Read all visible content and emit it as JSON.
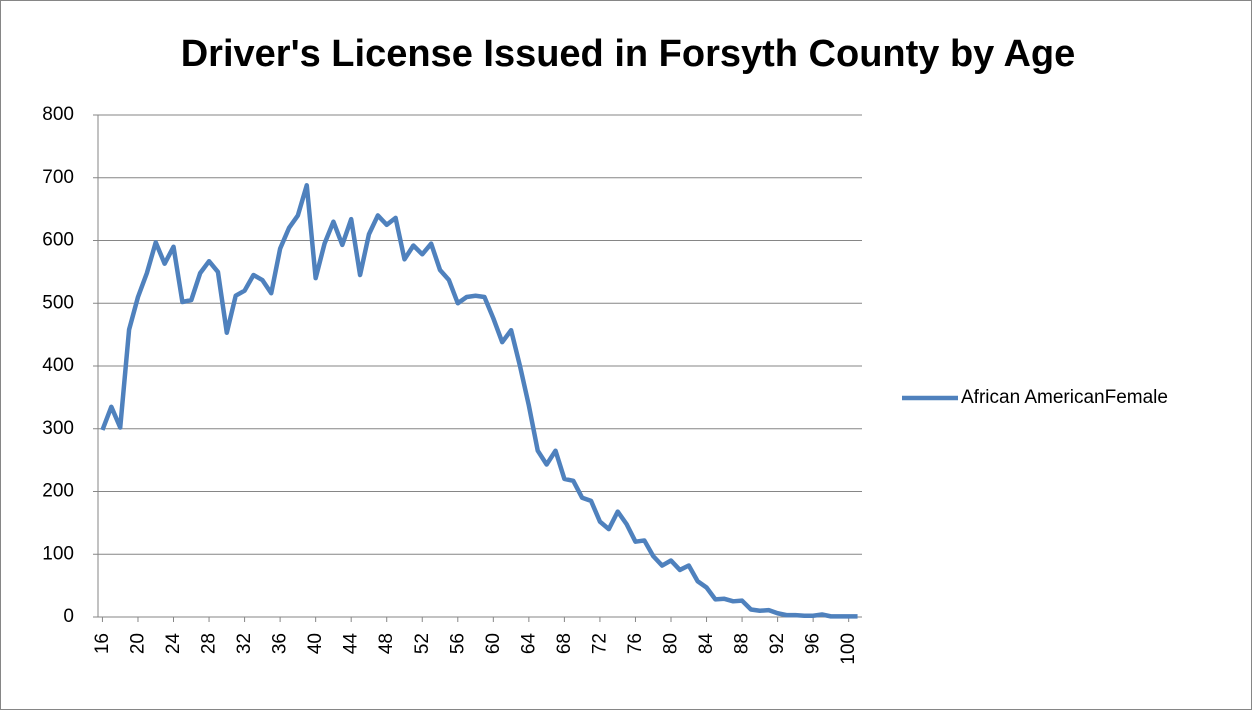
{
  "chart_data": {
    "type": "line",
    "title": "Driver's License Issued in Forsyth County by Age",
    "categories": [
      16,
      null,
      null,
      null,
      20,
      null,
      null,
      null,
      24,
      null,
      null,
      null,
      28,
      null,
      null,
      null,
      32,
      null,
      null,
      null,
      36,
      null,
      null,
      null,
      40,
      null,
      null,
      null,
      44,
      null,
      null,
      null,
      48,
      null,
      null,
      null,
      52,
      null,
      null,
      null,
      56,
      null,
      null,
      null,
      60,
      null,
      null,
      null,
      64,
      null,
      null,
      null,
      68,
      null,
      null,
      null,
      72,
      null,
      null,
      null,
      76,
      null,
      null,
      null,
      80,
      null,
      null,
      null,
      84,
      null,
      null,
      null,
      88,
      null,
      null,
      null,
      92,
      null,
      null,
      null,
      96,
      null,
      null,
      null,
      100,
      null
    ],
    "series": [
      {
        "name": "African AmericanFemale",
        "color": "#4f81bd",
        "values": [
          298,
          335,
          302,
          458,
          510,
          548,
          597,
          563,
          590,
          502,
          505,
          548,
          567,
          550,
          453,
          512,
          520,
          545,
          537,
          516,
          587,
          620,
          640,
          688,
          540,
          595,
          630,
          593,
          634,
          545,
          610,
          640,
          625,
          636,
          570,
          592,
          578,
          595,
          553,
          537,
          500,
          510,
          512,
          510,
          476,
          438,
          457,
          400,
          337,
          265,
          243,
          265,
          220,
          217,
          190,
          185,
          152,
          140,
          168,
          148,
          120,
          122,
          97,
          82,
          90,
          75,
          82,
          57,
          47,
          28,
          29,
          25,
          26,
          12,
          10,
          11,
          6,
          3,
          3,
          2,
          2,
          4,
          1,
          1,
          1,
          1
        ]
      }
    ],
    "ylim": [
      0,
      800
    ],
    "yticks": [
      0,
      100,
      200,
      300,
      400,
      500,
      600,
      700,
      800
    ],
    "grid": true,
    "legend": "right"
  }
}
